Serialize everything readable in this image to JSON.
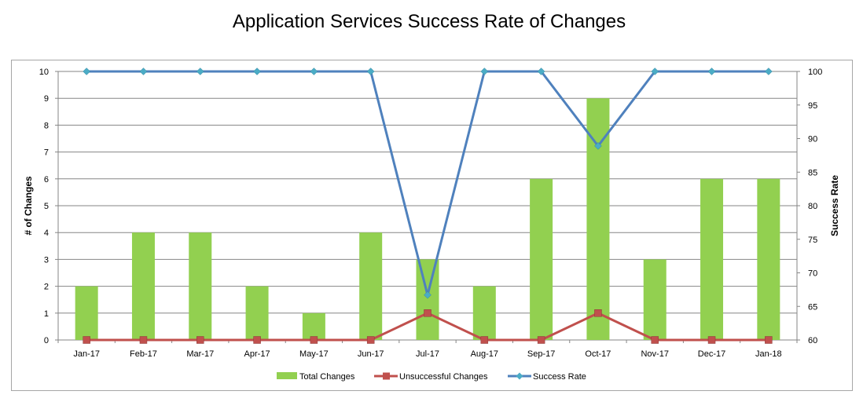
{
  "chart_data": {
    "type": "bar",
    "title": "Application Services Success Rate of Changes",
    "categories": [
      "Jan-17",
      "Feb-17",
      "Mar-17",
      "Apr-17",
      "May-17",
      "Jun-17",
      "Jul-17",
      "Aug-17",
      "Sep-17",
      "Oct-17",
      "Nov-17",
      "Dec-17",
      "Jan-18"
    ],
    "series": [
      {
        "name": "Total Changes",
        "kind": "bar",
        "axis": "left",
        "color": "#92d050",
        "values": [
          2,
          4,
          4,
          2,
          1,
          4,
          3,
          2,
          6,
          9,
          3,
          6,
          6
        ]
      },
      {
        "name": "Unsuccessful Changes",
        "kind": "line",
        "axis": "left",
        "color": "#c0504d",
        "marker": "square",
        "values": [
          0,
          0,
          0,
          0,
          0,
          0,
          1,
          0,
          0,
          1,
          0,
          0,
          0
        ]
      },
      {
        "name": "Success Rate",
        "kind": "line",
        "axis": "right",
        "color": "#4f81bd",
        "marker": "diamond",
        "values": [
          100,
          100,
          100,
          100,
          100,
          100,
          66.7,
          100,
          100,
          88.9,
          100,
          100,
          100
        ]
      }
    ],
    "ylabel": "# of Changes",
    "ylim": [
      0,
      10
    ],
    "yticks": [
      "0",
      "1",
      "2",
      "3",
      "4",
      "5",
      "6",
      "7",
      "8",
      "9",
      "10"
    ],
    "y2label": "Success Rate",
    "y2lim": [
      60,
      100
    ],
    "y2ticks": [
      "60",
      "65",
      "70",
      "75",
      "80",
      "85",
      "90",
      "95",
      "100"
    ],
    "grid": true,
    "legend_position": "bottom"
  }
}
